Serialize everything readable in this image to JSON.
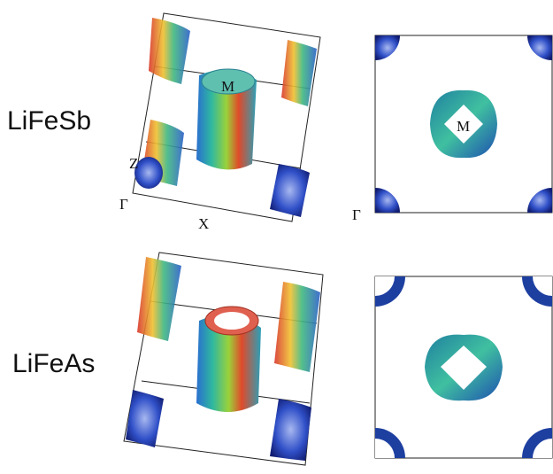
{
  "rows": [
    {
      "name": "LiFeSb",
      "cube_labels": [
        "M",
        "Z",
        "Γ",
        "X"
      ],
      "slice_labels": [
        "M",
        "Γ"
      ]
    },
    {
      "name": "LiFeAs"
    }
  ]
}
